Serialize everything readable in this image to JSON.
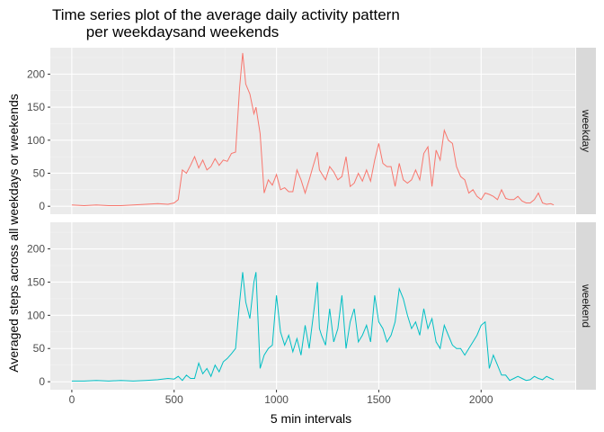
{
  "chart_data": {
    "type": "line",
    "title": "Time series plot of the average daily activity pattern\n        per weekdaysand weekends",
    "xlabel": "5 min intervals",
    "ylabel": "Averaged steps across all weekdays or weekends",
    "xlim": [
      -105,
      2460
    ],
    "ylim": [
      -12,
      240
    ],
    "x_ticks": [
      0,
      500,
      1000,
      1500,
      2000
    ],
    "y_ticks": [
      0,
      50,
      100,
      150,
      200
    ],
    "grid": true,
    "facet": "rows",
    "panels": [
      {
        "strip": "weekday",
        "color": "#F8766D",
        "x": [
          0,
          60,
          120,
          180,
          240,
          300,
          360,
          420,
          470,
          500,
          520,
          540,
          560,
          580,
          600,
          620,
          640,
          660,
          680,
          700,
          720,
          740,
          760,
          780,
          800,
          820,
          835,
          850,
          870,
          890,
          900,
          920,
          940,
          960,
          980,
          1000,
          1020,
          1040,
          1060,
          1080,
          1100,
          1120,
          1140,
          1160,
          1180,
          1200,
          1210,
          1220,
          1240,
          1260,
          1280,
          1300,
          1320,
          1340,
          1360,
          1380,
          1400,
          1420,
          1440,
          1460,
          1480,
          1500,
          1520,
          1540,
          1560,
          1580,
          1600,
          1620,
          1640,
          1660,
          1680,
          1700,
          1720,
          1740,
          1760,
          1780,
          1800,
          1820,
          1840,
          1860,
          1880,
          1900,
          1920,
          1940,
          1960,
          1980,
          2000,
          2020,
          2040,
          2060,
          2080,
          2100,
          2120,
          2140,
          2160,
          2180,
          2200,
          2220,
          2240,
          2260,
          2280,
          2300,
          2320,
          2340,
          2355
        ],
        "y": [
          2,
          1,
          2,
          1,
          1,
          2,
          3,
          4,
          3,
          5,
          10,
          55,
          50,
          62,
          75,
          58,
          70,
          55,
          60,
          72,
          62,
          70,
          68,
          80,
          82,
          180,
          232,
          185,
          170,
          140,
          150,
          110,
          20,
          40,
          32,
          48,
          25,
          28,
          22,
          22,
          55,
          40,
          20,
          40,
          62,
          82,
          55,
          50,
          40,
          60,
          52,
          40,
          45,
          75,
          30,
          35,
          50,
          38,
          55,
          38,
          70,
          95,
          65,
          60,
          60,
          30,
          65,
          40,
          35,
          40,
          55,
          40,
          80,
          90,
          30,
          85,
          70,
          115,
          100,
          95,
          60,
          45,
          40,
          20,
          25,
          15,
          10,
          20,
          18,
          15,
          10,
          25,
          12,
          10,
          10,
          15,
          8,
          5,
          5,
          10,
          20,
          5,
          3,
          4,
          2
        ]
      },
      {
        "strip": "weekend",
        "color": "#00BFC4",
        "x": [
          0,
          60,
          120,
          180,
          240,
          300,
          360,
          420,
          470,
          500,
          520,
          540,
          560,
          580,
          600,
          620,
          640,
          660,
          680,
          700,
          720,
          740,
          760,
          780,
          800,
          820,
          835,
          850,
          870,
          890,
          900,
          920,
          940,
          960,
          980,
          1000,
          1020,
          1040,
          1060,
          1080,
          1100,
          1120,
          1140,
          1160,
          1180,
          1200,
          1210,
          1220,
          1240,
          1260,
          1280,
          1300,
          1320,
          1340,
          1360,
          1380,
          1400,
          1420,
          1440,
          1460,
          1480,
          1500,
          1520,
          1540,
          1560,
          1580,
          1600,
          1620,
          1640,
          1660,
          1680,
          1700,
          1720,
          1740,
          1760,
          1780,
          1800,
          1820,
          1840,
          1860,
          1880,
          1900,
          1920,
          1940,
          1960,
          1980,
          2000,
          2020,
          2040,
          2060,
          2080,
          2100,
          2120,
          2140,
          2160,
          2180,
          2200,
          2220,
          2240,
          2260,
          2280,
          2300,
          2320,
          2340,
          2355
        ],
        "y": [
          1,
          1,
          2,
          1,
          2,
          1,
          2,
          3,
          5,
          4,
          8,
          2,
          10,
          5,
          5,
          28,
          12,
          20,
          8,
          25,
          15,
          30,
          35,
          42,
          50,
          120,
          165,
          120,
          95,
          150,
          165,
          20,
          40,
          50,
          55,
          130,
          75,
          55,
          70,
          45,
          65,
          40,
          85,
          50,
          100,
          150,
          80,
          70,
          55,
          110,
          60,
          80,
          130,
          50,
          90,
          110,
          60,
          70,
          85,
          60,
          130,
          90,
          80,
          60,
          70,
          90,
          140,
          125,
          100,
          80,
          90,
          70,
          110,
          80,
          95,
          60,
          50,
          85,
          70,
          55,
          50,
          50,
          40,
          50,
          60,
          70,
          85,
          90,
          20,
          40,
          25,
          10,
          10,
          2,
          5,
          8,
          5,
          2,
          3,
          8,
          5,
          3,
          8,
          5,
          3
        ]
      }
    ]
  }
}
